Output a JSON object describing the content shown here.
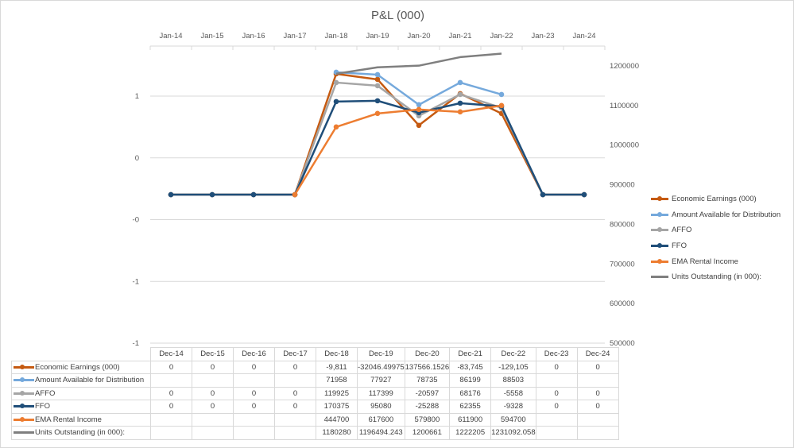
{
  "chart_data": {
    "type": "line",
    "title": "P&L (000)",
    "categories_top": [
      "Jan-14",
      "Jan-15",
      "Jan-16",
      "Jan-17",
      "Jan-18",
      "Jan-19",
      "Jan-20",
      "Jan-21",
      "Jan-22",
      "Jan-23",
      "Jan-24"
    ],
    "categories": [
      "Dec-14",
      "Dec-15",
      "Dec-16",
      "Dec-17",
      "Dec-18",
      "Dec-19",
      "Dec-20",
      "Dec-21",
      "Dec-22",
      "Dec-23",
      "Dec-24"
    ],
    "primary_axis_ticks": [
      "1",
      "0",
      "-0",
      "-1",
      "-1"
    ],
    "secondary_axis": {
      "ylim": [
        500000,
        1200000
      ],
      "ticks": [
        "1200000",
        "1100000",
        "1000000",
        "900000",
        "800000",
        "700000",
        "600000",
        "500000"
      ]
    },
    "grid": true,
    "legend": "right",
    "series": [
      {
        "name": "Economic Earnings (000)",
        "color": "#C55A11",
        "table": [
          "0",
          "0",
          "0",
          "0",
          "-9,811",
          "-32046.49975",
          "137566.1526",
          "-83,745",
          "-129,105",
          "0",
          "0"
        ],
        "plotted": [
          875000,
          875000,
          875000,
          875000,
          1180000,
          1166000,
          1050000,
          1130000,
          1080000,
          875000,
          875000
        ]
      },
      {
        "name": "Amount Available for Distribution",
        "color": "#75A9DC",
        "table": [
          "",
          "",
          "",
          "",
          "71958",
          "77927",
          "78735",
          "86199",
          "88503",
          "",
          ""
        ],
        "plotted": [
          null,
          null,
          null,
          null,
          1184000,
          1178000,
          1102000,
          1158000,
          1128000,
          null,
          null
        ]
      },
      {
        "name": "AFFO",
        "color": "#A5A5A5",
        "table": [
          "0",
          "0",
          "0",
          "0",
          "119925",
          "117399",
          "-20597",
          "68176",
          "-5558",
          "0",
          "0"
        ],
        "plotted": [
          875000,
          875000,
          875000,
          875000,
          1158000,
          1150000,
          1074000,
          1128000,
          1094000,
          875000,
          875000
        ]
      },
      {
        "name": "FFO",
        "color": "#1F4E79",
        "table": [
          "0",
          "0",
          "0",
          "0",
          "170375",
          "95080",
          "-25288",
          "62355",
          "-9328",
          "0",
          "0"
        ],
        "plotted": [
          875000,
          875000,
          875000,
          875000,
          1110000,
          1112000,
          1082000,
          1106000,
          1098000,
          875000,
          875000
        ]
      },
      {
        "name": "EMA Rental Income",
        "color": "#ED7D31",
        "table": [
          "",
          "",
          "",
          "",
          "444700",
          "617600",
          "579800",
          "611900",
          "594700",
          "",
          ""
        ],
        "plotted": [
          null,
          null,
          null,
          875000,
          1046000,
          1080000,
          1090000,
          1084000,
          1100000,
          null,
          null
        ]
      },
      {
        "name": "Units Outstanding (in 000):",
        "color": "#7F7F7F",
        "markers": false,
        "table": [
          "",
          "",
          "",
          "",
          "1180280",
          "1196494.243",
          "1200661",
          "1222205",
          "1231092.058",
          "",
          ""
        ],
        "plotted": [
          null,
          null,
          null,
          null,
          1180280,
          1196494.243,
          1200661,
          1222205,
          1231092.058,
          null,
          null
        ]
      }
    ]
  }
}
